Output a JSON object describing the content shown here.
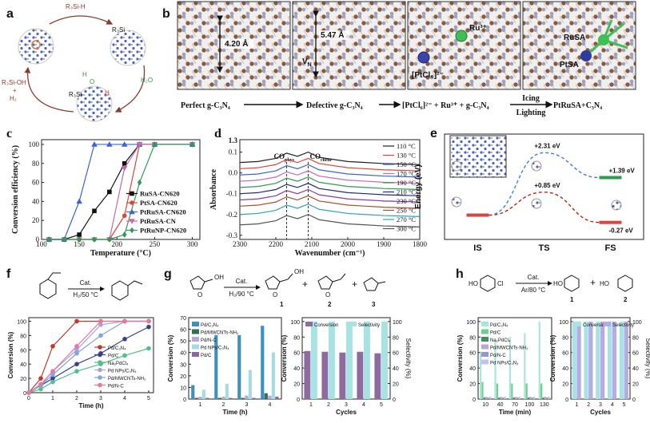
{
  "panel_a": {
    "label": "a",
    "reagent": "R₃Si-H",
    "intermediate": "R₃Si",
    "water": "H₂O",
    "product": "R₃Si-OH",
    "plus": "+",
    "byproduct": "H₂",
    "adduct_labels": [
      "H",
      "O",
      "R₃Si",
      "H"
    ]
  },
  "panel_b": {
    "label": "b",
    "distance_1": "4.20 Å",
    "distance_2": "5.47 Å",
    "vacancy": "V",
    "vacancy_sub": "N",
    "ru_ion": "Ru³⁺",
    "pt_complex": "[PtCl₆]²⁻",
    "ru_site": "RuSA",
    "pt_site": "PtSA",
    "steps": [
      "Perfect g-C₃N₄",
      "Defective g-C₃N₄",
      "[PtCl₆]²⁻ + Ru³⁺ + g-C₃N₄",
      "PtRuSA+C₃N₄"
    ],
    "conditions": [
      "Icing",
      "Lighting"
    ]
  },
  "schemes": {
    "f": {
      "catalyst": "Cat.",
      "conditions": "H₂/50 °C"
    },
    "g": {
      "catalyst": "Cat.",
      "conditions": "H₂/90 °C",
      "plus": "+",
      "products": [
        "1",
        "2",
        "3"
      ],
      "groups": [
        "O",
        "OH",
        "O",
        "OH",
        "O"
      ]
    },
    "h": {
      "reactant": "HO",
      "leaving": "Cl",
      "catalyst": "Cat.",
      "conditions": "Ar/80 °C",
      "plus": "+",
      "products": [
        "1",
        "2"
      ],
      "groups": [
        "HO"
      ]
    }
  },
  "chart_data": [
    {
      "type": "line",
      "label": "c",
      "xlabel": "Temperature (°C)",
      "ylabel": "Conversion efficiency (%)",
      "x": [
        110,
        130,
        150,
        170,
        190,
        210,
        230,
        250,
        300
      ],
      "xlim": [
        100,
        310
      ],
      "xticks": [
        100,
        150,
        200,
        250,
        300
      ],
      "ylim": [
        0,
        105
      ],
      "yticks": [
        0,
        20,
        40,
        60,
        80,
        100
      ],
      "legend": "lower right",
      "series": [
        {
          "name": "RuSA-CN620",
          "color": "#111111",
          "marker": "square",
          "values": [
            0,
            0,
            5,
            30,
            50,
            80,
            100,
            100,
            100
          ]
        },
        {
          "name": "PtSA-CN620",
          "color": "#d9463e",
          "marker": "circle",
          "values": [
            0,
            0,
            0,
            0,
            0,
            25,
            100,
            100,
            100
          ]
        },
        {
          "name": "PtRuSA-CN620",
          "color": "#3d63d1",
          "marker": "triangle",
          "values": [
            0,
            0,
            40,
            100,
            100,
            100,
            100,
            100,
            100
          ]
        },
        {
          "name": "PtRuSA-CN",
          "color": "#c76aa8",
          "marker": "triangle-down",
          "values": [
            0,
            0,
            0,
            0,
            0,
            75,
            100,
            100,
            100
          ]
        },
        {
          "name": "PtRuNP-CN620",
          "color": "#2f9a52",
          "marker": "diamond",
          "values": [
            0,
            0,
            0,
            0,
            0,
            5,
            60,
            100,
            100
          ]
        }
      ]
    },
    {
      "type": "line",
      "label": "d",
      "xlabel": "Wavenumber (cm⁻¹)",
      "ylabel": "Absorbance",
      "x": [
        2300,
        2250,
        2200,
        2170,
        2140,
        2110,
        2080,
        2000,
        1950,
        1900,
        1800
      ],
      "xlim": [
        2300,
        1800
      ],
      "xticks": [
        2300,
        2200,
        2100,
        2000,
        1900,
        1800
      ],
      "ylim": [
        -0.32,
        0.16
      ],
      "yticks": [
        -0.3,
        -0.2,
        -0.1,
        {
          "value": 0,
          "label": "0.0"
        },
        0.1
      ],
      "y_break_label": "1.3",
      "legend": "upper right",
      "annotations": [
        {
          "text": "CO",
          "sub": "phys",
          "x": 2170
        },
        {
          "text": "CO",
          "sub": "chem",
          "x": 2110
        }
      ],
      "series": [
        {
          "name": "110 °C",
          "color": "#222222",
          "values": [
            0.05,
            0.055,
            0.07,
            0.095,
            0.08,
            0.1,
            0.075,
            0.055,
            0.05,
            0.045,
            0.04
          ]
        },
        {
          "name": "130 °C",
          "color": "#d9463e",
          "values": [
            0.02,
            0.025,
            0.04,
            0.065,
            0.05,
            0.07,
            0.045,
            0.025,
            0.02,
            0.015,
            0.01
          ]
        },
        {
          "name": "150 °C",
          "color": "#3d63d1",
          "values": [
            -0.01,
            -0.005,
            0.01,
            0.035,
            0.02,
            0.04,
            0.015,
            -0.005,
            -0.01,
            -0.015,
            -0.02
          ]
        },
        {
          "name": "170 °C",
          "color": "#c76aa8",
          "values": [
            -0.04,
            -0.035,
            -0.02,
            0.005,
            -0.01,
            0.01,
            -0.015,
            -0.035,
            -0.04,
            -0.045,
            -0.05
          ]
        },
        {
          "name": "190 °C",
          "color": "#2f9a52",
          "values": [
            -0.07,
            -0.065,
            -0.05,
            -0.025,
            -0.04,
            -0.02,
            -0.045,
            -0.065,
            -0.07,
            -0.075,
            -0.08
          ]
        },
        {
          "name": "210 °C",
          "color": "#1f2a7a",
          "values": [
            -0.1,
            -0.095,
            -0.08,
            -0.055,
            -0.07,
            -0.05,
            -0.075,
            -0.095,
            -0.1,
            -0.105,
            -0.11
          ]
        },
        {
          "name": "230 °C",
          "color": "#8a3c9e",
          "values": [
            -0.13,
            -0.125,
            -0.11,
            -0.085,
            -0.1,
            -0.08,
            -0.105,
            -0.125,
            -0.13,
            -0.135,
            -0.14
          ]
        },
        {
          "name": "250 °C",
          "color": "#a0522d",
          "values": [
            -0.16,
            -0.155,
            -0.14,
            -0.115,
            -0.13,
            -0.11,
            -0.135,
            -0.155,
            -0.16,
            -0.165,
            -0.17
          ]
        },
        {
          "name": "270 °C",
          "color": "#2aa6b8",
          "values": [
            -0.2,
            -0.195,
            -0.18,
            -0.155,
            -0.17,
            -0.15,
            -0.175,
            -0.195,
            -0.2,
            -0.205,
            -0.21
          ]
        },
        {
          "name": "300 °C",
          "color": "#555555",
          "values": [
            -0.25,
            -0.245,
            -0.23,
            -0.205,
            -0.22,
            -0.2,
            -0.225,
            -0.245,
            -0.25,
            -0.255,
            -0.26
          ]
        }
      ]
    },
    {
      "type": "energy",
      "label": "e",
      "ylabel": "Energy (eV)",
      "categories": [
        "IS",
        "TS",
        "FS"
      ],
      "ylim": [
        -0.9,
        3.0
      ],
      "series": [
        {
          "color": "#3d7fd6",
          "level_color": "#2f9a52",
          "dash": true,
          "values": [
            0,
            2.31,
            1.39
          ],
          "value_labels": [
            null,
            "+2.31 eV",
            "+1.39 eV"
          ]
        },
        {
          "color": "#b0261c",
          "level_color": "#d9463e",
          "dash": true,
          "values": [
            0,
            0.85,
            -0.27
          ],
          "value_labels": [
            null,
            "+0.85 eV",
            "-0.27 eV"
          ]
        }
      ]
    },
    {
      "type": "line",
      "label": "f",
      "xlabel": "Time (h)",
      "ylabel": "Conversion (%)",
      "x": [
        0,
        0.5,
        1,
        2,
        3,
        4,
        5
      ],
      "xlim": [
        0,
        5.2
      ],
      "xticks": [
        0,
        1,
        2,
        3,
        4,
        5
      ],
      "ylim": [
        0,
        105
      ],
      "yticks": [
        0,
        20,
        40,
        60,
        80,
        100
      ],
      "legend": "lower right",
      "series": [
        {
          "name": "Pd/C₃N₄",
          "color": "#c0392b",
          "marker": "circle",
          "values": [
            0,
            20,
            65,
            100,
            100,
            100,
            100
          ]
        },
        {
          "name": "Pd/C",
          "color": "#3a3f8f",
          "marker": "circle",
          "values": [
            0,
            10,
            20,
            40,
            55,
            75,
            92
          ]
        },
        {
          "name": "Na₂PdCl₄",
          "color": "#4fc08d",
          "marker": "circle",
          "values": [
            0,
            5,
            15,
            30,
            40,
            52,
            62
          ]
        },
        {
          "name": "Pd NPs/C₃N₄",
          "color": "#a9a3d9",
          "marker": "circle",
          "values": [
            0,
            10,
            30,
            60,
            95,
            100,
            100
          ]
        },
        {
          "name": "Pd/MWCNTs-NH₂",
          "color": "#7fa7d9",
          "marker": "circle",
          "values": [
            0,
            10,
            25,
            55,
            80,
            100,
            100
          ]
        },
        {
          "name": "Pd/N-C",
          "color": "#e07aa0",
          "marker": "circle",
          "values": [
            0,
            12,
            30,
            65,
            100,
            100,
            100
          ]
        }
      ]
    },
    {
      "type": "bar",
      "label": "g",
      "xlabel": "Time (h)",
      "ylabel": "Conversion (%)",
      "categories": [
        "1",
        "2",
        "3",
        "4"
      ],
      "ylim": [
        0,
        70
      ],
      "yticks": [
        0,
        10,
        20,
        30,
        40,
        50,
        60,
        70
      ],
      "legend": "upper left",
      "series": [
        {
          "name": "Pd/C₃N₄",
          "color": "#3f8fc0",
          "values": [
            12,
            55,
            55,
            63
          ]
        },
        {
          "name": "Pd/MWCNTs-NH₂",
          "color": "#2f6f55",
          "values": [
            1,
            1,
            1,
            5
          ]
        },
        {
          "name": "Pd/N-C",
          "color": "#b3a9dc",
          "values": [
            2,
            2,
            3,
            3
          ]
        },
        {
          "name": "Pd NPs/C₃N₄",
          "color": "#a5dbe3",
          "values": [
            8,
            13,
            25,
            40
          ]
        },
        {
          "name": "Pd/C",
          "color": "#8a64a8",
          "values": [
            1,
            1,
            1,
            2
          ]
        }
      ]
    },
    {
      "type": "bar",
      "xlabel": "Cycles",
      "ylabel": "Conversion (%)",
      "y2label": "Selectivity (%)",
      "categories": [
        "1",
        "2",
        "3",
        "4",
        "5"
      ],
      "ylim": [
        0,
        105
      ],
      "yticks": [
        0,
        20,
        40,
        60,
        80,
        100
      ],
      "y2lim": [
        0,
        105
      ],
      "y2ticks": [
        0,
        20,
        40,
        60,
        80,
        100
      ],
      "legend": "upper center",
      "series": [
        {
          "name": "Conversion",
          "color": "#8e6aa0",
          "values": [
            62,
            61,
            60,
            61,
            59
          ]
        },
        {
          "name": "Selectivity",
          "color": "#a6e3e3",
          "axis": "y2",
          "values": [
            100,
            100,
            100,
            100,
            100
          ]
        }
      ]
    },
    {
      "type": "bar",
      "label": "h",
      "xlabel": "Time (min)",
      "ylabel": "Conversion (%)",
      "categories": [
        "10",
        "40",
        "70",
        "100",
        "130"
      ],
      "ylim": [
        0,
        105
      ],
      "yticks": [
        0,
        20,
        40,
        60,
        80,
        100
      ],
      "legend": "upper left",
      "series": [
        {
          "name": "Pd/C₃N₄",
          "color": "#a8e6da",
          "values": [
            60,
            75,
            80,
            85,
            100
          ]
        },
        {
          "name": "Pd/C",
          "color": "#6fcf8f",
          "values": [
            22,
            20,
            20,
            20,
            20
          ]
        },
        {
          "name": "Na₂PdCl₄",
          "color": "#3f8f5f",
          "values": [
            2,
            2,
            2,
            2,
            2
          ]
        },
        {
          "name": "Pd/MWCNTs-NH₂",
          "color": "#b8a8d8",
          "values": [
            3,
            3,
            3,
            3,
            3
          ]
        },
        {
          "name": "Pd/N-C",
          "color": "#8a9ad8",
          "values": [
            2,
            2,
            2,
            2,
            2
          ]
        },
        {
          "name": "Pd NPs/C₃N₄",
          "color": "#c8c0e8",
          "values": [
            3,
            3,
            3,
            3,
            3
          ]
        }
      ]
    },
    {
      "type": "bar",
      "xlabel": "Cycles",
      "ylabel": "Conversion (%)",
      "y2label": "Selectivity (%)",
      "categories": [
        "1",
        "2",
        "3",
        "4",
        "5"
      ],
      "ylim": [
        0,
        105
      ],
      "yticks": [
        0,
        20,
        40,
        60,
        80,
        100
      ],
      "y2lim": [
        0,
        105
      ],
      "y2ticks": [
        0,
        20,
        40,
        60,
        80,
        100
      ],
      "legend": "upper center",
      "series": [
        {
          "name": "Conversion",
          "color": "#a6e3e3",
          "values": [
            100,
            100,
            100,
            100,
            100
          ]
        },
        {
          "name": "Selectivity",
          "color": "#b4ace2",
          "axis": "y2",
          "values": [
            100,
            100,
            100,
            100,
            100
          ]
        }
      ]
    }
  ]
}
